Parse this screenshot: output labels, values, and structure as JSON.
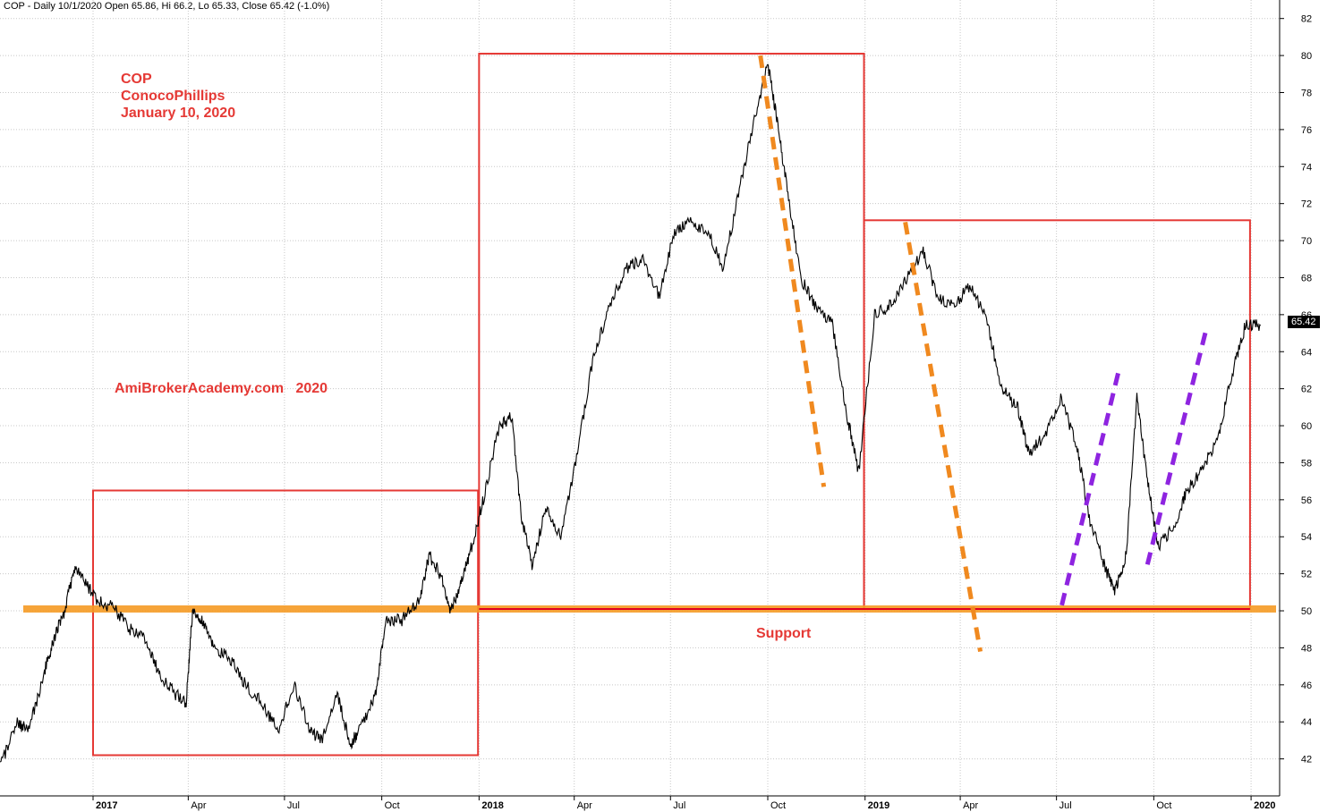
{
  "header": "COP - Daily 10/1/2020 Open 65.86, Hi 66.2, Lo 65.33, Close 65.42 (-1.0%)",
  "annotations": {
    "ticker": "COP",
    "company": "ConocoPhillips",
    "date": "January 10, 2020",
    "watermark": "AmiBrokerAcademy.com   2020",
    "support": "Support"
  },
  "last_price_label": "65.42",
  "colors": {
    "boxes": "#e53935",
    "support_band": "#f59a23",
    "down_trend": "#f0891f",
    "up_trend": "#8e24e0",
    "price": "#000000",
    "grid": "#c8c8c8"
  },
  "chart_data": {
    "type": "line",
    "ylim": [
      40,
      83
    ],
    "y_ticks": [
      42,
      44,
      46,
      48,
      50,
      52,
      54,
      56,
      58,
      60,
      62,
      64,
      66,
      68,
      70,
      72,
      74,
      76,
      78,
      80,
      82
    ],
    "x_range": [
      "2016-10-05",
      "2020-01-28"
    ],
    "x_ticks": [
      {
        "label": "2017",
        "date": "2017-01-01",
        "year": true
      },
      {
        "label": "Apr",
        "date": "2017-04-01",
        "year": false
      },
      {
        "label": "Jul",
        "date": "2017-07-01",
        "year": false
      },
      {
        "label": "Oct",
        "date": "2017-10-01",
        "year": false
      },
      {
        "label": "2018",
        "date": "2018-01-01",
        "year": true
      },
      {
        "label": "Apr",
        "date": "2018-04-01",
        "year": false
      },
      {
        "label": "Jul",
        "date": "2018-07-01",
        "year": false
      },
      {
        "label": "Oct",
        "date": "2018-10-01",
        "year": false
      },
      {
        "label": "2019",
        "date": "2019-01-01",
        "year": true
      },
      {
        "label": "Apr",
        "date": "2019-04-01",
        "year": false
      },
      {
        "label": "Jul",
        "date": "2019-07-01",
        "year": false
      },
      {
        "label": "Oct",
        "date": "2019-10-01",
        "year": false
      },
      {
        "label": "2020",
        "date": "2020-01-01",
        "year": true
      }
    ],
    "price": [
      [
        "2016-10-05",
        41.5
      ],
      [
        "2016-10-20",
        44.0
      ],
      [
        "2016-11-01",
        43.5
      ],
      [
        "2016-11-15",
        46.5
      ],
      [
        "2016-11-25",
        48.5
      ],
      [
        "2016-12-05",
        50.0
      ],
      [
        "2016-12-15",
        52.5
      ],
      [
        "2016-12-25",
        51.5
      ],
      [
        "2017-01-05",
        50.5
      ],
      [
        "2017-01-20",
        50.2
      ],
      [
        "2017-02-05",
        49.0
      ],
      [
        "2017-02-20",
        48.5
      ],
      [
        "2017-03-05",
        46.5
      ],
      [
        "2017-03-20",
        45.5
      ],
      [
        "2017-03-30",
        45.0
      ],
      [
        "2017-04-05",
        50.0
      ],
      [
        "2017-04-15",
        49.5
      ],
      [
        "2017-04-25",
        48.0
      ],
      [
        "2017-05-10",
        47.5
      ],
      [
        "2017-05-25",
        46.0
      ],
      [
        "2017-06-10",
        45.0
      ],
      [
        "2017-06-25",
        43.5
      ],
      [
        "2017-07-10",
        46.0
      ],
      [
        "2017-07-25",
        43.5
      ],
      [
        "2017-08-05",
        43.0
      ],
      [
        "2017-08-20",
        45.5
      ],
      [
        "2017-09-01",
        42.8
      ],
      [
        "2017-09-10",
        43.5
      ],
      [
        "2017-09-25",
        45.5
      ],
      [
        "2017-10-05",
        49.5
      ],
      [
        "2017-10-20",
        49.5
      ],
      [
        "2017-11-05",
        50.5
      ],
      [
        "2017-11-15",
        53.0
      ],
      [
        "2017-11-25",
        52.0
      ],
      [
        "2017-12-05",
        50.0
      ],
      [
        "2017-12-15",
        51.5
      ],
      [
        "2017-12-25",
        53.5
      ],
      [
        "2018-01-05",
        56.0
      ],
      [
        "2018-01-20",
        60.0
      ],
      [
        "2018-02-01",
        60.5
      ],
      [
        "2018-02-10",
        55.0
      ],
      [
        "2018-02-20",
        52.5
      ],
      [
        "2018-03-05",
        55.5
      ],
      [
        "2018-03-20",
        54.0
      ],
      [
        "2018-04-05",
        59.0
      ],
      [
        "2018-04-20",
        64.0
      ],
      [
        "2018-05-05",
        66.5
      ],
      [
        "2018-05-20",
        68.5
      ],
      [
        "2018-06-05",
        69.0
      ],
      [
        "2018-06-20",
        67.0
      ],
      [
        "2018-07-05",
        70.5
      ],
      [
        "2018-07-20",
        71.0
      ],
      [
        "2018-08-05",
        70.5
      ],
      [
        "2018-08-20",
        68.5
      ],
      [
        "2018-09-05",
        73.0
      ],
      [
        "2018-09-20",
        77.0
      ],
      [
        "2018-10-01",
        79.5
      ],
      [
        "2018-10-10",
        76.5
      ],
      [
        "2018-10-20",
        72.5
      ],
      [
        "2018-11-01",
        68.0
      ],
      [
        "2018-11-15",
        66.5
      ],
      [
        "2018-12-01",
        65.5
      ],
      [
        "2018-12-15",
        60.5
      ],
      [
        "2018-12-26",
        57.5
      ],
      [
        "2019-01-10",
        66.0
      ],
      [
        "2019-01-25",
        66.5
      ],
      [
        "2019-02-10",
        68.0
      ],
      [
        "2019-02-25",
        69.5
      ],
      [
        "2019-03-10",
        67.0
      ],
      [
        "2019-03-25",
        66.5
      ],
      [
        "2019-04-10",
        67.5
      ],
      [
        "2019-04-25",
        66.0
      ],
      [
        "2019-05-10",
        62.0
      ],
      [
        "2019-05-25",
        61.0
      ],
      [
        "2019-06-05",
        58.5
      ],
      [
        "2019-06-20",
        59.5
      ],
      [
        "2019-07-05",
        61.5
      ],
      [
        "2019-07-20",
        59.0
      ],
      [
        "2019-08-01",
        55.0
      ],
      [
        "2019-08-15",
        52.5
      ],
      [
        "2019-08-25",
        51.0
      ],
      [
        "2019-09-05",
        53.0
      ],
      [
        "2019-09-15",
        61.5
      ],
      [
        "2019-09-25",
        57.0
      ],
      [
        "2019-10-05",
        53.5
      ],
      [
        "2019-10-20",
        54.5
      ],
      [
        "2019-11-01",
        56.5
      ],
      [
        "2019-11-15",
        57.5
      ],
      [
        "2019-12-01",
        59.5
      ],
      [
        "2019-12-15",
        63.0
      ],
      [
        "2019-12-27",
        65.5
      ],
      [
        "2020-01-10",
        65.42
      ]
    ],
    "support_level": 50.1,
    "boxes": [
      {
        "x0": "2017-01-01",
        "x1": "2017-12-31",
        "y0": 42.2,
        "y1": 56.5
      },
      {
        "x0": "2018-01-01",
        "x1": "2018-12-31",
        "y0": 50.1,
        "y1": 80.1
      },
      {
        "x0": "2018-12-31",
        "x1": "2019-12-31",
        "y0": 50.1,
        "y1": 71.1
      }
    ],
    "trendlines": [
      {
        "kind": "down",
        "x0": "2018-09-24",
        "y0": 80.0,
        "x1": "2018-11-23",
        "y1": 56.7
      },
      {
        "kind": "down",
        "x0": "2019-02-08",
        "y0": 71.0,
        "x1": "2019-04-20",
        "y1": 47.8
      },
      {
        "kind": "up",
        "x0": "2019-07-06",
        "y0": 50.3,
        "x1": "2019-08-29",
        "y1": 63.0
      },
      {
        "kind": "up",
        "x0": "2019-09-25",
        "y0": 52.5,
        "x1": "2019-11-20",
        "y1": 65.3
      }
    ]
  }
}
